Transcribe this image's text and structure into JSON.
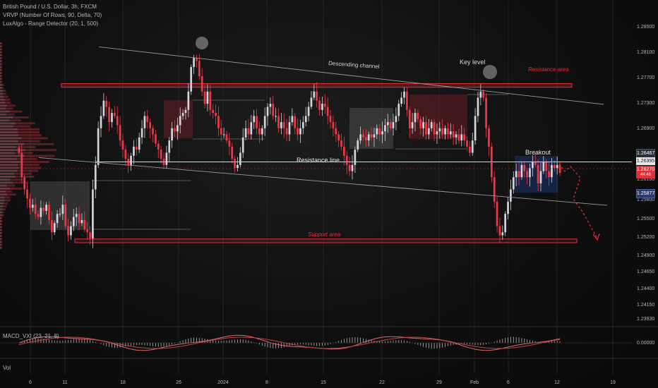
{
  "legend": {
    "title": "British Pound / U.S. Dollar, 3h, FXCM",
    "line2": "VRVP (Number Of Rows, 90, Delta, 70)",
    "line3": "LuxAlgo - Range Detector (20, 1, 500)"
  },
  "annotations": {
    "descending_channel": "Descending channel",
    "key_level": "Key level",
    "resistance_area": "Resistance area",
    "resistance_line": "Resistance line",
    "breakout": "Breakout",
    "support_area": "Support area"
  },
  "price_tags": {
    "tag1": "1.26467",
    "tag2": "1.26395",
    "tag3": "1.26270",
    "tag3_sub": "44:46",
    "tag4": "1.25877"
  },
  "macd": {
    "label": "MACD_VXI (23, 21, 8)",
    "zero": "0.00000"
  },
  "volume_label": "Vol",
  "colors": {
    "up": "#d1d4dc",
    "down": "#f23645",
    "zone_red": "#e0303a",
    "zone_gray": "#8a8a8a",
    "zone_blue": "#2962ff"
  },
  "chart_data": {
    "type": "candlestick",
    "title": "British Pound / U.S. Dollar, 3h, FXCM",
    "y_ticks": [
      "1.28500",
      "1.28100",
      "1.27700",
      "1.27300",
      "1.26900",
      "1.26500",
      "1.26100",
      "1.25800",
      "1.25500",
      "1.25200",
      "1.24900",
      "1.24650",
      "1.24400",
      "1.24150",
      "1.23930"
    ],
    "x_ticks": [
      "6",
      "11",
      "18",
      "26",
      "2024",
      "8",
      "15",
      "22",
      "29",
      "Feb",
      "6",
      "12",
      "19"
    ],
    "ylim": [
      1.2385,
      1.2875
    ],
    "levels": {
      "resistance_area": [
        1.2767,
        1.2773
      ],
      "support_area": [
        1.2513,
        1.2519
      ],
      "resistance_line": 1.2645,
      "descending_channel_upper": {
        "start": 1.2833,
        "end": 1.2739
      },
      "descending_channel_lower": {
        "start": 1.2652,
        "end": 1.2574
      }
    },
    "closes": [
      1.266,
      1.262,
      1.26,
      1.2585,
      1.257,
      1.2575,
      1.256,
      1.2555,
      1.257,
      1.2565,
      1.2575,
      1.255,
      1.253,
      1.2545,
      1.256,
      1.256,
      1.2575,
      1.254,
      1.2525,
      1.254,
      1.2555,
      1.256,
      1.2545,
      1.255,
      1.2535,
      1.253,
      1.252,
      1.26,
      1.264,
      1.27,
      1.272,
      1.2745,
      1.2735,
      1.271,
      1.2725,
      1.272,
      1.2705,
      1.268,
      1.2665,
      1.265,
      1.264,
      1.2655,
      1.267,
      1.2665,
      1.2685,
      1.27,
      1.272,
      1.271,
      1.27,
      1.269,
      1.2675,
      1.2665,
      1.265,
      1.264,
      1.266,
      1.268,
      1.27,
      1.2695,
      1.2705,
      1.272,
      1.2725,
      1.273,
      1.276,
      1.28,
      1.2815,
      1.281,
      1.2785,
      1.276,
      1.274,
      1.276,
      1.273,
      1.2725,
      1.272,
      1.27,
      1.269,
      1.269,
      1.268,
      1.267,
      1.265,
      1.2635,
      1.264,
      1.266,
      1.2685,
      1.27,
      1.269,
      1.271,
      1.272,
      1.27,
      1.269,
      1.27,
      1.272,
      1.2735,
      1.274,
      1.272,
      1.272,
      1.27,
      1.271,
      1.27,
      1.269,
      1.271,
      1.272,
      1.27,
      1.269,
      1.27,
      1.271,
      1.272,
      1.2735,
      1.275,
      1.276,
      1.2745,
      1.273,
      1.274,
      1.2735,
      1.272,
      1.271,
      1.27,
      1.269,
      1.268,
      1.267,
      1.2655,
      1.264,
      1.263,
      1.264,
      1.2665,
      1.268,
      1.269,
      1.2685,
      1.268,
      1.269,
      1.2685,
      1.269,
      1.27,
      1.269,
      1.2695,
      1.2705,
      1.271,
      1.27,
      1.271,
      1.272,
      1.274,
      1.275,
      1.276,
      1.273,
      1.27,
      1.271,
      1.2725,
      1.2715,
      1.27,
      1.271,
      1.269,
      1.27,
      1.271,
      1.269,
      1.2695,
      1.27,
      1.269,
      1.27,
      1.269,
      1.2695,
      1.2685,
      1.269,
      1.268,
      1.269,
      1.268,
      1.267,
      1.266,
      1.268,
      1.272,
      1.275,
      1.276,
      1.275,
      1.27,
      1.267,
      1.262,
      1.258,
      1.254,
      1.2525,
      1.253,
      1.256,
      1.258,
      1.26,
      1.262,
      1.263,
      1.262,
      1.264,
      1.263,
      1.262,
      1.2635,
      1.2645,
      1.264,
      1.261,
      1.263,
      1.2645,
      1.263,
      1.262,
      1.264,
      1.2635,
      1.264,
      1.2627
    ]
  }
}
